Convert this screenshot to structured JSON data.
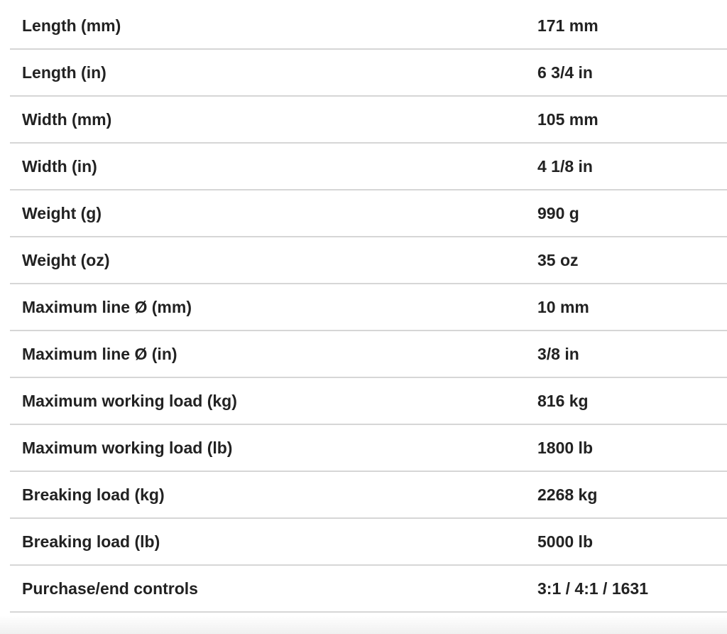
{
  "specs": [
    {
      "label": "Length (mm)",
      "value": "171 mm"
    },
    {
      "label": "Length (in)",
      "value": "6 3/4 in"
    },
    {
      "label": "Width (mm)",
      "value": "105 mm"
    },
    {
      "label": "Width (in)",
      "value": "4 1/8 in"
    },
    {
      "label": "Weight (g)",
      "value": "990 g"
    },
    {
      "label": "Weight (oz)",
      "value": "35 oz"
    },
    {
      "label": "Maximum line Ø (mm)",
      "value": "10 mm"
    },
    {
      "label": "Maximum line Ø (in)",
      "value": "3/8 in"
    },
    {
      "label": "Maximum working load (kg)",
      "value": "816 kg"
    },
    {
      "label": "Maximum working load (lb)",
      "value": "1800 lb"
    },
    {
      "label": "Breaking load (kg)",
      "value": "2268 kg"
    },
    {
      "label": "Breaking load (lb)",
      "value": "5000 lb"
    },
    {
      "label": "Purchase/end controls",
      "value": "3:1 / 4:1 / 1631"
    }
  ]
}
